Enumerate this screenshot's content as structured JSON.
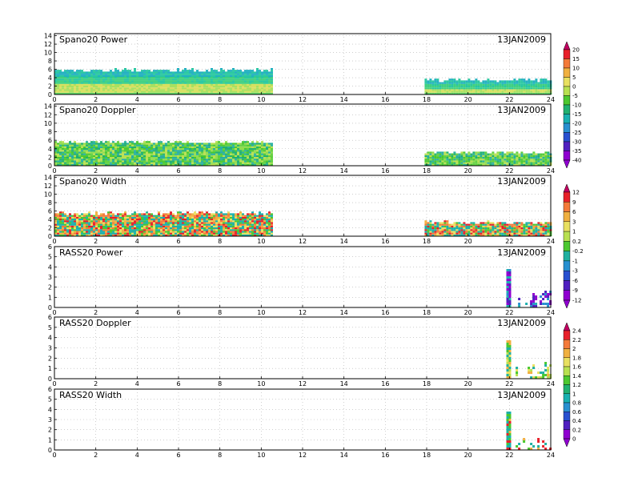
{
  "date_label": "13JAN2009",
  "chart_data": [
    {
      "type": "heatmap",
      "title": "Spano20 Power",
      "x_ticks": [
        0,
        2,
        4,
        6,
        8,
        10,
        12,
        14,
        16,
        18,
        20,
        22,
        24
      ],
      "y_ticks": [
        0,
        2,
        4,
        6,
        8,
        10,
        12,
        14
      ],
      "xlim": [
        0,
        24
      ],
      "ylim": [
        0,
        14.5
      ],
      "grid": true,
      "data_blocks": [
        {
          "x": [
            0,
            10.5
          ],
          "y_top": 6.0
        },
        {
          "x": [
            17.9,
            24
          ],
          "y_top": 3.7
        }
      ],
      "colorbar": {
        "labels": [
          "20",
          "15",
          "10",
          "5",
          "0",
          "-5",
          "-10",
          "-15",
          "-20",
          "-25",
          "-30",
          "-35",
          "-40"
        ]
      }
    },
    {
      "type": "heatmap",
      "title": "Spano20 Doppler",
      "x_ticks": [
        0,
        2,
        4,
        6,
        8,
        10,
        12,
        14,
        16,
        18,
        20,
        22,
        24
      ],
      "y_ticks": [
        0,
        2,
        4,
        6,
        8,
        10,
        12,
        14
      ],
      "xlim": [
        0,
        24
      ],
      "ylim": [
        0,
        14.5
      ],
      "grid": true,
      "data_blocks": [
        {
          "x": [
            0,
            10.5
          ],
          "y_top": 5.8
        },
        {
          "x": [
            17.9,
            24
          ],
          "y_top": 3.3
        }
      ]
    },
    {
      "type": "heatmap",
      "title": "Spano20 Width",
      "x_ticks": [
        0,
        2,
        4,
        6,
        8,
        10,
        12,
        14,
        16,
        18,
        20,
        22,
        24
      ],
      "y_ticks": [
        0,
        2,
        4,
        6,
        8,
        10,
        12,
        14
      ],
      "xlim": [
        0,
        24
      ],
      "ylim": [
        0,
        14.5
      ],
      "grid": true,
      "data_blocks": [
        {
          "x": [
            0,
            10.5
          ],
          "y_top": 5.7
        },
        {
          "x": [
            17.9,
            24
          ],
          "y_top": 3.5
        }
      ],
      "colorbar": {
        "labels": [
          "12",
          "9",
          "6",
          "3",
          "1",
          "0.2",
          "-0.2",
          "-1",
          "-3",
          "-6",
          "-9",
          "-12"
        ]
      }
    },
    {
      "type": "heatmap",
      "title": "RASS20 Power",
      "x_ticks": [
        0,
        2,
        4,
        6,
        8,
        10,
        12,
        14,
        16,
        18,
        20,
        22,
        24
      ],
      "y_ticks": [
        0,
        1,
        2,
        3,
        4,
        5,
        6
      ],
      "xlim": [
        0,
        24
      ],
      "ylim": [
        0,
        6
      ],
      "grid": true,
      "data_blocks": [
        {
          "x": [
            21.85,
            22.05
          ],
          "y_top": 3.9
        },
        {
          "x": [
            22.3,
            24
          ],
          "y_top": 1.8
        }
      ]
    },
    {
      "type": "heatmap",
      "title": "RASS20 Doppler",
      "x_ticks": [
        0,
        2,
        4,
        6,
        8,
        10,
        12,
        14,
        16,
        18,
        20,
        22,
        24
      ],
      "y_ticks": [
        0,
        1,
        2,
        3,
        4,
        5,
        6
      ],
      "xlim": [
        0,
        24
      ],
      "ylim": [
        0,
        6
      ],
      "grid": true,
      "data_blocks": [
        {
          "x": [
            21.85,
            22.05
          ],
          "y_top": 3.9
        },
        {
          "x": [
            22.3,
            24
          ],
          "y_top": 1.8
        }
      ],
      "colorbar": {
        "labels": [
          "2.4",
          "2.2",
          "2",
          "1.8",
          "1.6",
          "1.4",
          "1.2",
          "1",
          "0.8",
          "0.6",
          "0.4",
          "0.2",
          "0"
        ]
      }
    },
    {
      "type": "heatmap",
      "title": "RASS20 Width",
      "x_ticks": [
        0,
        2,
        4,
        6,
        8,
        10,
        12,
        14,
        16,
        18,
        20,
        22,
        24
      ],
      "y_ticks": [
        0,
        1,
        2,
        3,
        4,
        5,
        6
      ],
      "xlim": [
        0,
        24
      ],
      "ylim": [
        0,
        6
      ],
      "grid": true,
      "data_blocks": [
        {
          "x": [
            21.85,
            22.05
          ],
          "y_top": 3.9
        },
        {
          "x": [
            22.3,
            24
          ],
          "y_top": 1.5
        }
      ]
    }
  ],
  "colors": {
    "scale13": [
      "#c20060",
      "#e8202a",
      "#f47a3a",
      "#f0b040",
      "#e8e060",
      "#b8e050",
      "#4cc830",
      "#20b070",
      "#18b0b0",
      "#2890d0",
      "#2850d0",
      "#5020c0",
      "#9000d0"
    ],
    "scale12": [
      "#c20060",
      "#e8202a",
      "#f47a3a",
      "#f0b040",
      "#e8e060",
      "#b8e050",
      "#4cc830",
      "#20b0a0",
      "#2890d0",
      "#2850d0",
      "#5020c0",
      "#9000d0"
    ]
  }
}
